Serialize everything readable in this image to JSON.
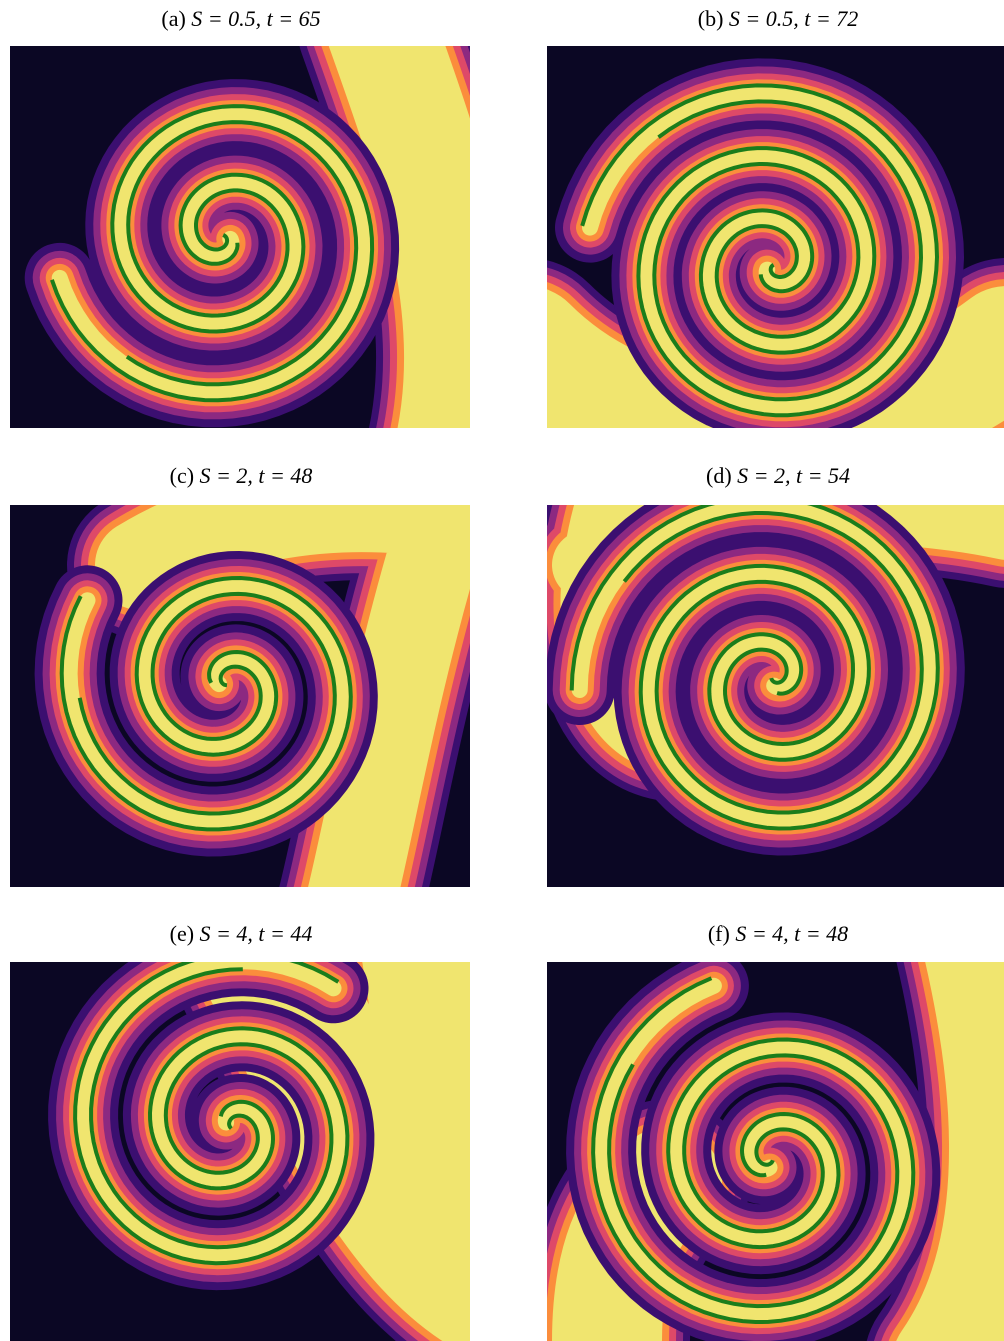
{
  "panels": [
    {
      "label": "(a)",
      "math": "S = 0.5, t = 65"
    },
    {
      "label": "(b)",
      "math": "S = 0.5, t = 72"
    },
    {
      "label": "(c)",
      "math": "S = 2, t = 48"
    },
    {
      "label": "(d)",
      "math": "S = 2, t = 54"
    },
    {
      "label": "(e)",
      "math": "S = 4, t = 44"
    },
    {
      "label": "(f)",
      "math": "S = 4, t = 48"
    }
  ]
}
